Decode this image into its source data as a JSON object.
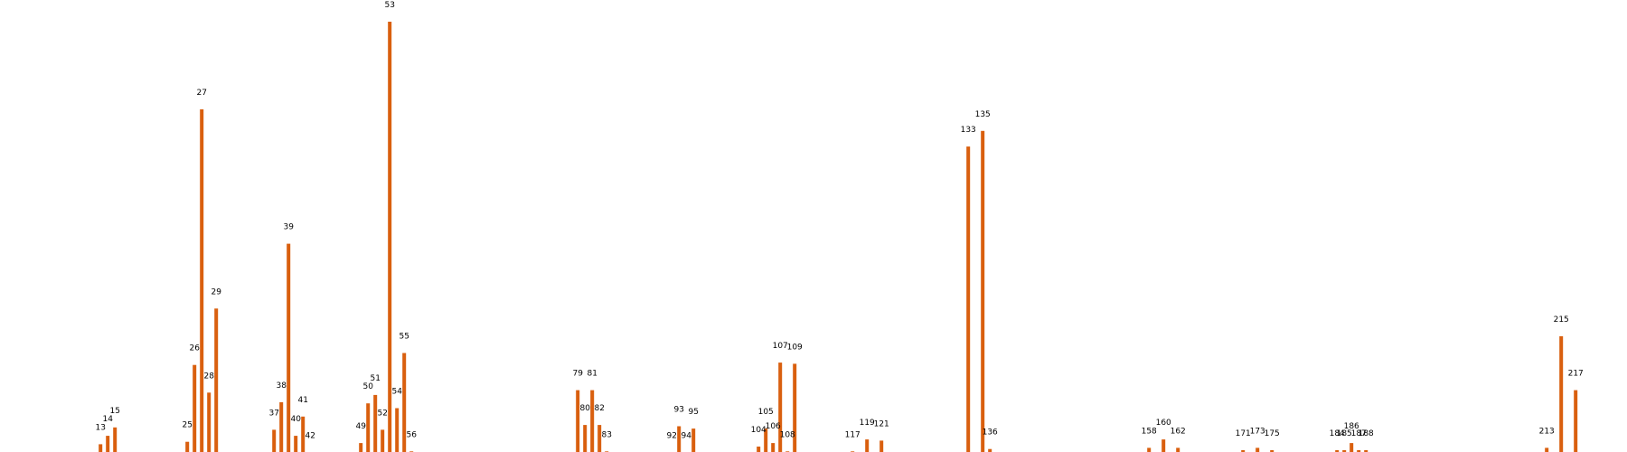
{
  "chart_data": {
    "type": "bar",
    "title": "",
    "xlabel": "",
    "ylabel": "",
    "ylim": [
      0,
      36
    ],
    "grid": false,
    "bar_color": "#d95f0e",
    "bars": [
      {
        "x": 13,
        "value": 0.8
      },
      {
        "x": 14,
        "value": 1.5
      },
      {
        "x": 15,
        "value": 2.2
      },
      {
        "x": 25,
        "value": 1.0
      },
      {
        "x": 26,
        "value": 7.4
      },
      {
        "x": 27,
        "value": 28.7
      },
      {
        "x": 28,
        "value": 5.1
      },
      {
        "x": 29,
        "value": 12.1
      },
      {
        "x": 37,
        "value": 2.0
      },
      {
        "x": 38,
        "value": 4.3
      },
      {
        "x": 39,
        "value": 17.5
      },
      {
        "x": 40,
        "value": 1.5
      },
      {
        "x": 41,
        "value": 3.1
      },
      {
        "x": 42,
        "value": 0.1
      },
      {
        "x": 49,
        "value": 0.9
      },
      {
        "x": 50,
        "value": 4.2
      },
      {
        "x": 51,
        "value": 4.9
      },
      {
        "x": 52,
        "value": 2.0
      },
      {
        "x": 53,
        "value": 36.0
      },
      {
        "x": 54,
        "value": 3.8
      },
      {
        "x": 55,
        "value": 8.4
      },
      {
        "x": 56,
        "value": 0.2
      },
      {
        "x": 79,
        "value": 5.3
      },
      {
        "x": 80,
        "value": 2.4
      },
      {
        "x": 81,
        "value": 5.3
      },
      {
        "x": 82,
        "value": 2.4
      },
      {
        "x": 83,
        "value": 0.2
      },
      {
        "x": 92,
        "value": 0.1
      },
      {
        "x": 93,
        "value": 2.3
      },
      {
        "x": 94,
        "value": 0.1
      },
      {
        "x": 95,
        "value": 2.1
      },
      {
        "x": 104,
        "value": 0.6
      },
      {
        "x": 105,
        "value": 2.1
      },
      {
        "x": 106,
        "value": 0.9
      },
      {
        "x": 107,
        "value": 7.6
      },
      {
        "x": 108,
        "value": 0.2
      },
      {
        "x": 109,
        "value": 7.5
      },
      {
        "x": 117,
        "value": 0.2
      },
      {
        "x": 119,
        "value": 1.2
      },
      {
        "x": 121,
        "value": 1.1
      },
      {
        "x": 133,
        "value": 25.6
      },
      {
        "x": 135,
        "value": 26.9
      },
      {
        "x": 136,
        "value": 0.4
      },
      {
        "x": 158,
        "value": 0.5
      },
      {
        "x": 160,
        "value": 1.2
      },
      {
        "x": 162,
        "value": 0.5
      },
      {
        "x": 171,
        "value": 0.3
      },
      {
        "x": 173,
        "value": 0.5
      },
      {
        "x": 175,
        "value": 0.3
      },
      {
        "x": 184,
        "value": 0.3
      },
      {
        "x": 185,
        "value": 0.3
      },
      {
        "x": 186,
        "value": 0.9
      },
      {
        "x": 187,
        "value": 0.3
      },
      {
        "x": 188,
        "value": 0.3
      },
      {
        "x": 213,
        "value": 0.5
      },
      {
        "x": 215,
        "value": 9.8
      },
      {
        "x": 217,
        "value": 5.3
      }
    ]
  }
}
